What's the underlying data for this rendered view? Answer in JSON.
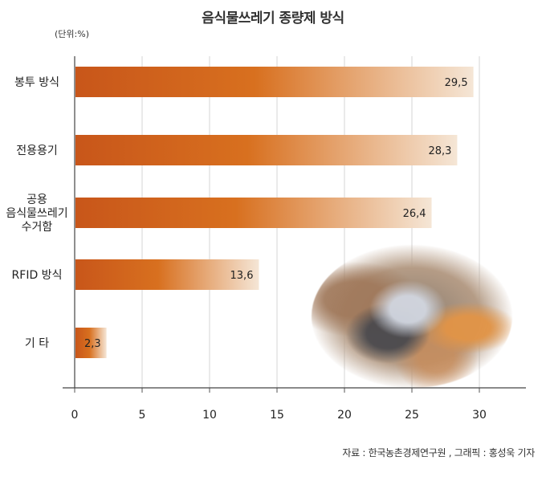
{
  "chart_data": {
    "type": "bar",
    "orientation": "horizontal",
    "title": "음식물쓰레기 종량제 방식",
    "unit_label": "(단위:%)",
    "categories": [
      "봉투 방식",
      "전용용기",
      "공용\n음식물쓰레기\n수거함",
      "RFID 방식",
      "기  타"
    ],
    "values": [
      29.5,
      28.3,
      26.4,
      13.6,
      2.3
    ],
    "value_labels": [
      "29.5",
      "28.3",
      "26.4",
      "13.6",
      "2.3"
    ],
    "x_ticks": [
      0,
      5,
      10,
      15,
      20,
      25,
      30
    ],
    "xlim": [
      0,
      33
    ],
    "grid": true,
    "bar_color_start": "#c8561a",
    "bar_color_end": "#f5e6d6"
  },
  "source_text": "자료 : 한국농촌경제연구원 , 그래픽 : 홍성욱 기자",
  "photo_icon": "food-waste-bag-photo"
}
